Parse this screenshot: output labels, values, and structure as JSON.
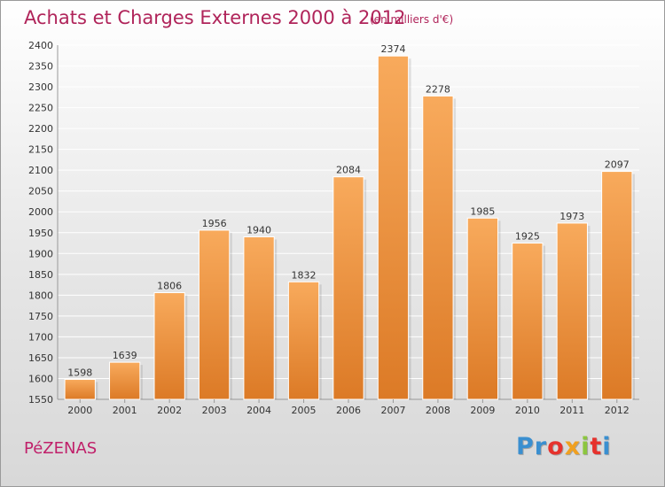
{
  "header": {
    "title": "Achats et Charges Externes 2000 à 2012",
    "subtitle": "(en milliers d'€)"
  },
  "footer": {
    "city": "PéZENAS",
    "logo_letters": [
      "P",
      "r",
      "o",
      "x",
      "i",
      "t",
      "i"
    ]
  },
  "colors": {
    "title": "#b0245a",
    "city": "#c0206a",
    "bar_light": "#f8aa5c",
    "bar_dark": "#dc7a26",
    "grid": "#ffffff",
    "logo": [
      "#3a8fd0",
      "#3a8fd0",
      "#e6322d",
      "#f0a020",
      "#8cc63f",
      "#e6322d",
      "#3a8fd0"
    ]
  },
  "chart_data": {
    "type": "bar",
    "title": "Achats et Charges Externes 2000 à 2012",
    "subtitle": "(en milliers d'€)",
    "categories": [
      "2000",
      "2001",
      "2002",
      "2003",
      "2004",
      "2005",
      "2006",
      "2007",
      "2008",
      "2009",
      "2010",
      "2011",
      "2012"
    ],
    "values": [
      1598,
      1639,
      1806,
      1956,
      1940,
      1832,
      2084,
      2374,
      2278,
      1985,
      1925,
      1973,
      2097
    ],
    "ylim": [
      1550,
      2400
    ],
    "yticks": [
      1550,
      1600,
      1650,
      1700,
      1750,
      1800,
      1850,
      1900,
      1950,
      2000,
      2050,
      2100,
      2150,
      2200,
      2250,
      2300,
      2350,
      2400
    ],
    "xlabel": "",
    "ylabel": "",
    "grid": true
  }
}
